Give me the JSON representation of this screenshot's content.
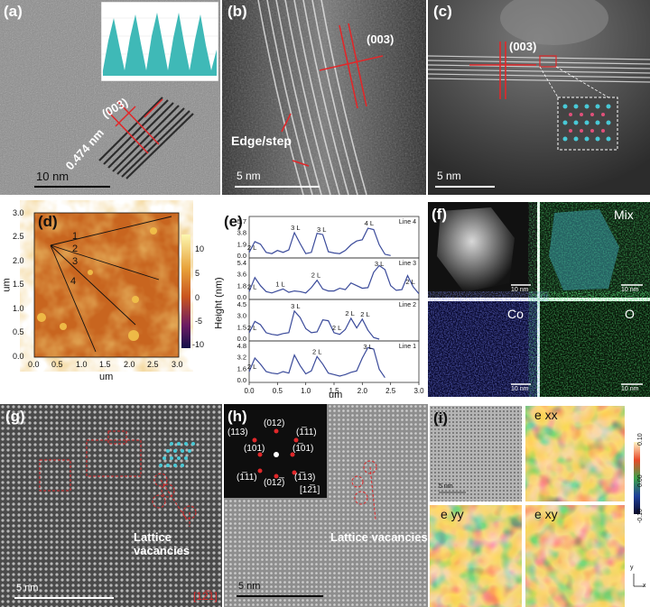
{
  "panels": {
    "a": {
      "label": "(a)",
      "plane": "(003)",
      "spacing": "0.474 nm",
      "scale": "10 nm",
      "inset_peaks": 6
    },
    "b": {
      "label": "(b)",
      "plane": "(003)",
      "annotation": "Edge/step",
      "scale": "5 nm"
    },
    "c": {
      "label": "(c)",
      "plane": "(003)",
      "scale": "5 nm"
    },
    "d": {
      "label": "(d)",
      "xlabel": "um",
      "ylabel": "um",
      "xticks": [
        "0.0",
        "0.5",
        "1.0",
        "1.5",
        "2.0",
        "2.5",
        "3.0"
      ],
      "yticks": [
        "0.0",
        "0.5",
        "1.0",
        "1.5",
        "2.0",
        "2.5",
        "3.0"
      ],
      "colorbar_ticks": [
        "10",
        "5",
        "0",
        "-5",
        "-10"
      ],
      "line_labels": [
        "1",
        "2",
        "3",
        "4"
      ]
    },
    "e": {
      "label": "(e)",
      "xlabel": "um",
      "ylabel": "Height (nm)",
      "xticks": [
        "0.0",
        "0.5",
        "1.0",
        "1.5",
        "2.0",
        "2.5",
        "3.0"
      ]
    },
    "f": {
      "label": "(f)",
      "maps": [
        "Mix",
        "Co",
        "O"
      ],
      "scale": "10 nm"
    },
    "g": {
      "label": "(g)",
      "annotation": "Lattice vacancies",
      "scale": "5 nm",
      "zone": "[12̅1]"
    },
    "h": {
      "label": "(h)",
      "annotation": "Lattice vacancies",
      "scale": "5 nm",
      "zone": "[12̅1]",
      "spots": [
        "(113)",
        "(012)",
        "(1̅11)",
        "(101)",
        "(1̅01)",
        "(1̅11)",
        "(012̅)",
        "(1̅13)"
      ]
    },
    "i": {
      "label": "(i)",
      "maps": [
        "e xx",
        "e yy",
        "e xy"
      ],
      "scale": "5 nm",
      "colorbar_ticks": [
        "0.10",
        "0.00",
        "-0.10"
      ],
      "axes": [
        "y",
        "x"
      ]
    }
  },
  "chart_data": [
    {
      "type": "line",
      "panel": "e",
      "xlabel": "um",
      "ylabel": "Height (nm)",
      "xlim": [
        0,
        3
      ],
      "series": [
        {
          "name": "Line 4",
          "yticks": [
            "5.7",
            "3.8",
            "1.9",
            "0.0"
          ],
          "ymax": 5.7,
          "x": [
            0,
            0.1,
            0.2,
            0.3,
            0.4,
            0.5,
            0.6,
            0.7,
            0.8,
            0.9,
            1.0,
            1.1,
            1.2,
            1.3,
            1.4,
            1.5,
            1.6,
            1.7,
            1.8,
            1.9,
            2.0,
            2.1,
            2.2,
            2.3,
            2.4,
            2.5
          ],
          "y": [
            0.6,
            2.3,
            1.9,
            0.6,
            0.4,
            0.9,
            0.6,
            1.0,
            3.7,
            2.0,
            0.4,
            0.6,
            3.6,
            3.4,
            0.7,
            0.5,
            0.4,
            0.9,
            1.8,
            2.4,
            2.6,
            4.4,
            4.2,
            1.8,
            0.3,
            0.1
          ],
          "peak_labels": [
            {
              "x": 0.05,
              "text": "2 L"
            },
            {
              "x": 0.82,
              "text": "3 L"
            },
            {
              "x": 1.28,
              "text": "3 L"
            },
            {
              "x": 2.12,
              "text": "4 L"
            }
          ]
        },
        {
          "name": "Line 3",
          "yticks": [
            "5.4",
            "3.6",
            "1.8",
            "0.0"
          ],
          "ymax": 5.4,
          "x": [
            0,
            0.1,
            0.2,
            0.3,
            0.4,
            0.5,
            0.6,
            0.7,
            0.8,
            0.9,
            1.0,
            1.1,
            1.2,
            1.3,
            1.4,
            1.5,
            1.6,
            1.7,
            1.8,
            1.9,
            2.0,
            2.1,
            2.2,
            2.3,
            2.4,
            2.5,
            2.6,
            2.7,
            2.8,
            2.9,
            3.0
          ],
          "y": [
            0.9,
            3.0,
            1.8,
            0.9,
            0.7,
            1.0,
            1.3,
            0.8,
            1.0,
            0.9,
            0.7,
            1.5,
            2.6,
            1.3,
            1.0,
            1.0,
            1.4,
            1.2,
            2.2,
            1.8,
            1.4,
            1.5,
            3.8,
            4.8,
            4.2,
            1.8,
            1.1,
            1.2,
            3.3,
            1.6,
            0.6
          ],
          "peak_labels": [
            {
              "x": 0.05,
              "text": "2 L"
            },
            {
              "x": 0.55,
              "text": "1 L"
            },
            {
              "x": 1.18,
              "text": "2 L"
            },
            {
              "x": 2.3,
              "text": "3 L"
            },
            {
              "x": 2.85,
              "text": "2 L"
            }
          ]
        },
        {
          "name": "Line 2",
          "yticks": [
            "4.5",
            "3.0",
            "1.5",
            "0.0"
          ],
          "ymax": 4.5,
          "x": [
            0,
            0.1,
            0.2,
            0.3,
            0.4,
            0.5,
            0.6,
            0.7,
            0.8,
            0.9,
            1.0,
            1.1,
            1.2,
            1.3,
            1.4,
            1.5,
            1.6,
            1.7,
            1.8,
            1.9,
            2.0,
            2.1,
            2.2,
            2.3
          ],
          "y": [
            0.8,
            2.2,
            1.8,
            0.8,
            0.6,
            0.5,
            0.7,
            0.8,
            3.5,
            2.7,
            1.3,
            0.8,
            0.9,
            2.4,
            2.3,
            0.8,
            0.6,
            1.2,
            2.6,
            1.4,
            2.5,
            1.1,
            0.2,
            0.0
          ],
          "peak_labels": [
            {
              "x": 0.05,
              "text": "2 L"
            },
            {
              "x": 0.82,
              "text": "3 L"
            },
            {
              "x": 1.55,
              "text": "2 L"
            },
            {
              "x": 1.78,
              "text": "2 L"
            },
            {
              "x": 2.05,
              "text": "2 L"
            }
          ]
        },
        {
          "name": "Line 1",
          "yticks": [
            "4.8",
            "3.2",
            "1.6",
            "0.0"
          ],
          "ymax": 4.8,
          "x": [
            0,
            0.1,
            0.2,
            0.3,
            0.4,
            0.5,
            0.6,
            0.7,
            0.8,
            0.9,
            1.0,
            1.1,
            1.2,
            1.3,
            1.4,
            1.5,
            1.6,
            1.7,
            1.8,
            1.9,
            2.0,
            2.1,
            2.2,
            2.3,
            2.4
          ],
          "y": [
            1.2,
            3.0,
            2.2,
            1.2,
            1.0,
            0.9,
            1.2,
            1.0,
            3.4,
            2.0,
            0.9,
            1.3,
            3.2,
            2.2,
            1.0,
            0.8,
            0.6,
            0.8,
            1.1,
            1.3,
            3.0,
            4.4,
            4.2,
            1.5,
            0.4
          ],
          "peak_labels": [
            {
              "x": 0.05,
              "text": "2 L"
            },
            {
              "x": 1.2,
              "text": "2 L"
            },
            {
              "x": 2.1,
              "text": "3 L"
            }
          ]
        }
      ]
    }
  ]
}
